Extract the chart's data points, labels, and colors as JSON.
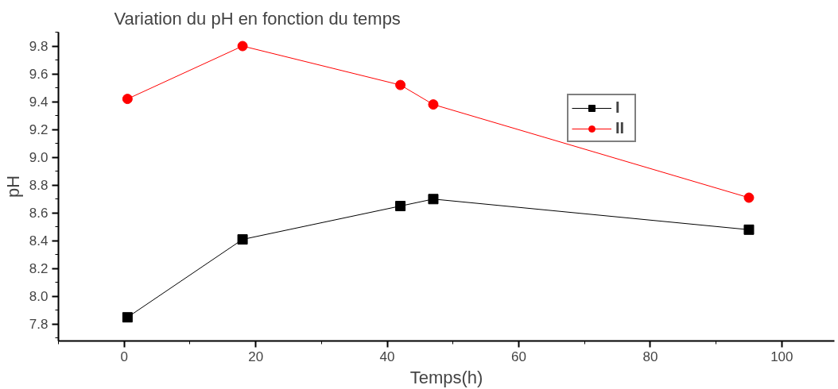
{
  "chart_data": {
    "type": "line",
    "title": "Variation du pH en fonction du temps",
    "xlabel": "Temps(h)",
    "ylabel": "pH",
    "xlim": [
      -10,
      108
    ],
    "ylim": [
      7.68,
      9.9
    ],
    "xticks": [
      0,
      20,
      40,
      60,
      80,
      100
    ],
    "yticks": [
      7.8,
      {
        "value": 8,
        "label": "8.0"
      },
      8.2,
      8.4,
      8.6,
      8.8,
      {
        "value": 9,
        "label": "9.0"
      },
      9.2,
      9.4,
      9.6,
      9.8
    ],
    "grid": false,
    "legend": "top right",
    "series": [
      {
        "name": "I",
        "color": "#000000",
        "marker": "square",
        "x": [
          0.5,
          18,
          42,
          47,
          95
        ],
        "values": [
          7.85,
          8.41,
          8.65,
          8.7,
          8.48
        ]
      },
      {
        "name": "II",
        "color": "#ff0000",
        "marker": "circle",
        "x": [
          0.5,
          18,
          42,
          47,
          95
        ],
        "values": [
          9.42,
          9.8,
          9.52,
          9.38,
          8.71
        ]
      }
    ]
  }
}
